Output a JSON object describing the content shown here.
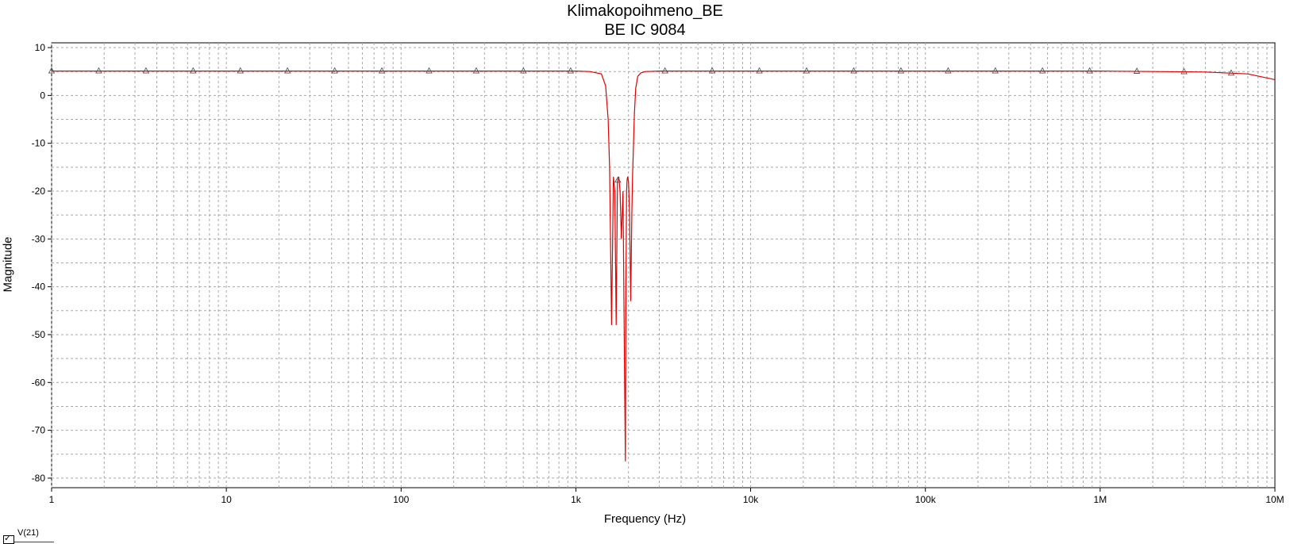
{
  "chart_data": {
    "type": "line",
    "title": "Klimakopoihmeno_BE",
    "subtitle": "BE IC 9084",
    "xlabel": "Frequency (Hz)",
    "ylabel": "Magnitude",
    "xscale": "log",
    "xlim": [
      1,
      10000000
    ],
    "ylim": [
      -82,
      11
    ],
    "x_tick_labels": [
      "1",
      "10",
      "100",
      "1k",
      "10k",
      "100k",
      "1M",
      "10M"
    ],
    "y_ticks": [
      10,
      0,
      -10,
      -20,
      -30,
      -40,
      -50,
      -60,
      -70,
      -80
    ],
    "grid": true,
    "legend": "bottom-left",
    "series": [
      {
        "name": "V(21)",
        "color": "#e00000",
        "marker": "triangle",
        "x": [
          1,
          1000,
          1200,
          1400,
          1480,
          1530,
          1560,
          1600,
          1640,
          1670,
          1700,
          1730,
          1760,
          1790,
          1820,
          1860,
          1900,
          1920,
          1935,
          1950,
          1965,
          1980,
          2000,
          2030,
          2060,
          2090,
          2110,
          2130,
          2160,
          2200,
          2260,
          2350,
          2500,
          3000,
          100000,
          1000000,
          2000000,
          4000000,
          7000000,
          10000000
        ],
        "values": [
          5.1,
          5.1,
          5.0,
          4.5,
          2.0,
          -5.0,
          -15.0,
          -48.0,
          -17.0,
          -20.0,
          -48.0,
          -18.0,
          -17.0,
          -20.0,
          -30.0,
          -20.0,
          -59.0,
          -76.5,
          -40.0,
          -20.0,
          -17.5,
          -17.0,
          -18.0,
          -25.0,
          -43.0,
          -25.0,
          -17.0,
          -12.0,
          -4.0,
          1.5,
          4.0,
          4.7,
          5.0,
          5.1,
          5.1,
          5.1,
          5.0,
          4.9,
          4.5,
          3.3
        ]
      }
    ]
  }
}
